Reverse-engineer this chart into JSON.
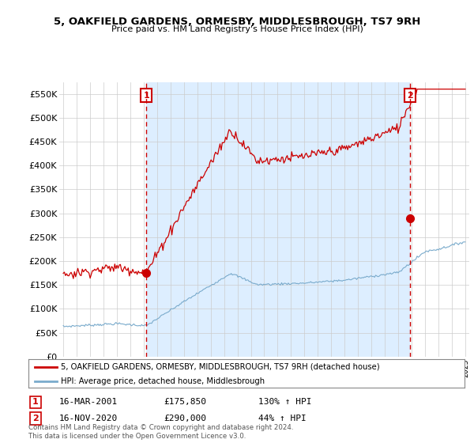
{
  "title": "5, OAKFIELD GARDENS, ORMESBY, MIDDLESBROUGH, TS7 9RH",
  "subtitle": "Price paid vs. HM Land Registry's House Price Index (HPI)",
  "ylabel_ticks": [
    "£0",
    "£50K",
    "£100K",
    "£150K",
    "£200K",
    "£250K",
    "£300K",
    "£350K",
    "£400K",
    "£450K",
    "£500K",
    "£550K"
  ],
  "ytick_values": [
    0,
    50000,
    100000,
    150000,
    200000,
    250000,
    300000,
    350000,
    400000,
    450000,
    500000,
    550000
  ],
  "ylim": [
    0,
    575000
  ],
  "sale1_date": "16-MAR-2001",
  "sale1_price": 175850,
  "sale1_hpi": "130%",
  "sale2_date": "16-NOV-2020",
  "sale2_price": 290000,
  "sale2_hpi": "44%",
  "legend_line1": "5, OAKFIELD GARDENS, ORMESBY, MIDDLESBROUGH, TS7 9RH (detached house)",
  "legend_line2": "HPI: Average price, detached house, Middlesbrough",
  "footnote": "Contains HM Land Registry data © Crown copyright and database right 2024.\nThis data is licensed under the Open Government Licence v3.0.",
  "house_color": "#cc0000",
  "hpi_color": "#7aabcc",
  "shade_color": "#ddeeff",
  "background_color": "#ffffff",
  "grid_color": "#cccccc"
}
